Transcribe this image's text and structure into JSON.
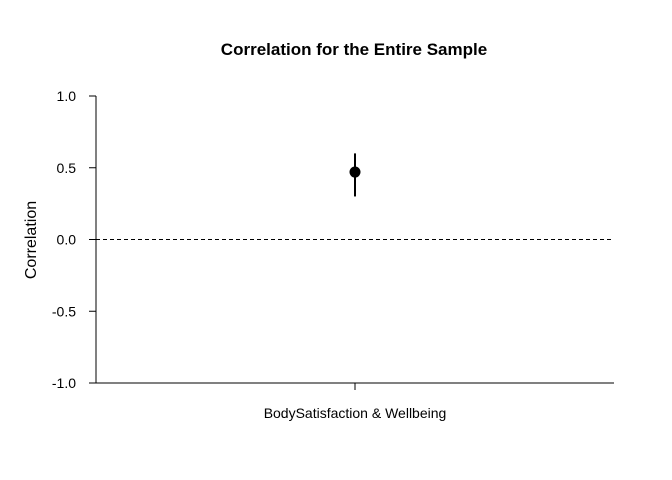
{
  "chart_data": {
    "type": "scatter",
    "title": "Correlation for the Entire Sample",
    "xlabel": "",
    "ylabel": "Correlation",
    "ylim": [
      -1.0,
      1.0
    ],
    "yticks": [
      1.0,
      0.5,
      0.0,
      -0.5,
      -1.0
    ],
    "ytick_labels": [
      "1.0",
      "0.5",
      "0.0",
      "-0.5",
      "-1.0"
    ],
    "categories": [
      "BodySatisfaction & Wellbeing"
    ],
    "points": [
      {
        "category": "BodySatisfaction & Wellbeing",
        "y": 0.47,
        "ci_lower": 0.3,
        "ci_upper": 0.6
      }
    ],
    "reference_line": 0.0,
    "grid": false
  }
}
